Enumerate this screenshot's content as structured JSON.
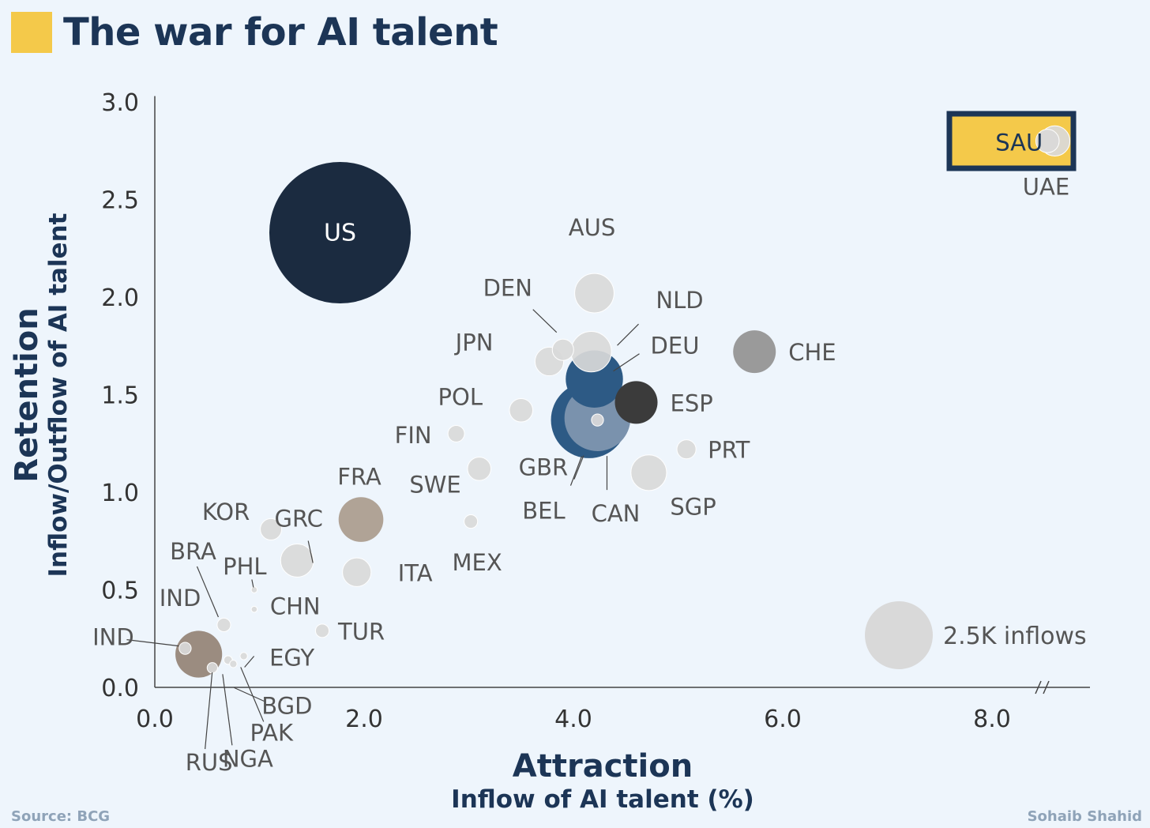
{
  "title": "The war for AI talent",
  "colors": {
    "title_accent": "#f4c94a",
    "title_text": "#1c3556",
    "us": "#1b2b40",
    "deu": "#2d5a85",
    "can": "#7a92ad",
    "esp": "#3b3b3b",
    "che": "#9a9a9a",
    "fra": "#b0a396",
    "rus": "#9b8c80",
    "light": "#d9d9d9",
    "axis": "#444444"
  },
  "chart_data": {
    "type": "scatter",
    "title": "The war for AI talent",
    "xlabel": "Attraction",
    "xlabel_sub": "Inflow of AI talent (%)",
    "ylabel": "Retention",
    "ylabel_sub": "Inflow/Outflow of AI talent",
    "xlim": [
      0,
      9
    ],
    "ylim": [
      0,
      3
    ],
    "x_ticks": [
      "0.0",
      "2.0",
      "4.0",
      "6.0",
      "8.0"
    ],
    "y_ticks": [
      "0.0",
      "0.5",
      "1.0",
      "1.5",
      "2.0",
      "2.5",
      "3.0"
    ],
    "x_axis_break": true,
    "bubble_size_legend": "2.5K inflows",
    "highlight": "SAU",
    "points": [
      {
        "label": "US",
        "x": 1.77,
        "y": 2.33,
        "size": 11.0,
        "color": "us"
      },
      {
        "label": "GBR",
        "x": 4.15,
        "y": 1.37,
        "size": 3.2,
        "color": "deu"
      },
      {
        "label": "DEU",
        "x": 4.2,
        "y": 1.58,
        "size": 1.8,
        "color": "deu"
      },
      {
        "label": "CAN",
        "x": 4.23,
        "y": 1.38,
        "size": 2.4,
        "color": "can"
      },
      {
        "label": "BEL",
        "x": 4.23,
        "y": 1.37,
        "size": 0.08,
        "color": "light"
      },
      {
        "label": "ESP",
        "x": 4.6,
        "y": 1.46,
        "size": 1.0,
        "color": "esp"
      },
      {
        "label": "NLD",
        "x": 4.17,
        "y": 1.72,
        "size": 0.9,
        "color": "light"
      },
      {
        "label": "AUS",
        "x": 4.2,
        "y": 2.02,
        "size": 0.85,
        "color": "light"
      },
      {
        "label": "DEN",
        "x": 3.9,
        "y": 1.73,
        "size": 0.25,
        "color": "light"
      },
      {
        "label": "JPN",
        "x": 3.77,
        "y": 1.67,
        "size": 0.45,
        "color": "light"
      },
      {
        "label": "POL",
        "x": 3.5,
        "y": 1.42,
        "size": 0.3,
        "color": "light"
      },
      {
        "label": "CHE",
        "x": 5.73,
        "y": 1.72,
        "size": 1.0,
        "color": "che"
      },
      {
        "label": "PRT",
        "x": 5.08,
        "y": 1.22,
        "size": 0.2,
        "color": "light"
      },
      {
        "label": "SGP",
        "x": 4.72,
        "y": 1.1,
        "size": 0.7,
        "color": "light"
      },
      {
        "label": "FIN",
        "x": 2.88,
        "y": 1.3,
        "size": 0.15,
        "color": "light"
      },
      {
        "label": "SWE",
        "x": 3.1,
        "y": 1.12,
        "size": 0.3,
        "color": "light"
      },
      {
        "label": "MEX",
        "x": 3.02,
        "y": 0.85,
        "size": 0.1,
        "color": "light"
      },
      {
        "label": "FRA",
        "x": 1.97,
        "y": 0.86,
        "size": 1.1,
        "color": "fra"
      },
      {
        "label": "ITA",
        "x": 1.93,
        "y": 0.59,
        "size": 0.45,
        "color": "light"
      },
      {
        "label": "KOR",
        "x": 1.11,
        "y": 0.81,
        "size": 0.25,
        "color": "light"
      },
      {
        "label": "GRC",
        "x": 1.36,
        "y": 0.65,
        "size": 0.6,
        "color": "light"
      },
      {
        "label": "TUR",
        "x": 1.6,
        "y": 0.29,
        "size": 0.1,
        "color": "light"
      },
      {
        "label": "BRA",
        "x": 0.66,
        "y": 0.32,
        "size": 0.1,
        "color": "light"
      },
      {
        "label": "PHL",
        "x": 0.95,
        "y": 0.4,
        "size": 0.02,
        "color": "light"
      },
      {
        "label": "CHN",
        "x": 0.95,
        "y": 0.5,
        "size": 0.02,
        "color": "light"
      },
      {
        "label": "RUS",
        "x": 0.42,
        "y": 0.17,
        "size": 1.2,
        "color": "rus"
      },
      {
        "label": "IND",
        "x": 0.29,
        "y": 0.2,
        "size": 0.08,
        "color": "light"
      },
      {
        "label": "NGA",
        "x": 0.55,
        "y": 0.1,
        "size": 0.06,
        "color": "light"
      },
      {
        "label": "PAK",
        "x": 0.7,
        "y": 0.14,
        "size": 0.04,
        "color": "light"
      },
      {
        "label": "EGY",
        "x": 0.85,
        "y": 0.16,
        "size": 0.03,
        "color": "light"
      },
      {
        "label": "BGD",
        "x": 0.75,
        "y": 0.12,
        "size": 0.03,
        "color": "light"
      },
      {
        "label": "SAU",
        "x": 8.53,
        "y": 2.8,
        "size": 0.3,
        "color": "light"
      },
      {
        "label": "UAE",
        "x": 8.6,
        "y": 2.8,
        "size": 0.5,
        "color": "light"
      }
    ]
  },
  "footer": {
    "source": "Source: BCG",
    "author": "Sohaib Shahid"
  }
}
